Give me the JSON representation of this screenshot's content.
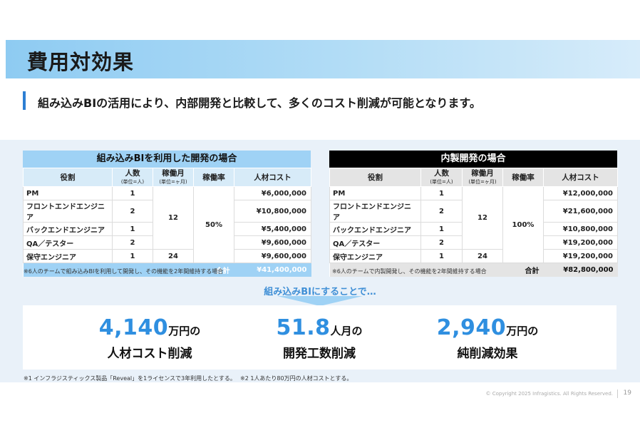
{
  "title": "費用対効果",
  "subtitle": "組み込みBIの活用により、内部開発と比較して、多くのコスト削減が可能となります。",
  "headers": {
    "role": "役割",
    "people": "人数",
    "people_unit": "(単位=人)",
    "months": "稼働月",
    "months_unit": "(単位=ヶ月)",
    "rate": "稼働率",
    "cost": "人材コスト",
    "total": "合計"
  },
  "left_table": {
    "caption": "組み込みBIを利用した開発の場合",
    "rows": [
      {
        "role": "PM",
        "people": "1",
        "cost": "¥6,000,000"
      },
      {
        "role": "フロントエンドエンジニア",
        "people": "2",
        "cost": "¥10,800,000"
      },
      {
        "role": "バックエンドエンジニア",
        "people": "1",
        "cost": "¥5,400,000"
      },
      {
        "role": "QA／テスター",
        "people": "2",
        "cost": "¥9,600,000"
      },
      {
        "role": "保守エンジニア",
        "people": "1",
        "months": "24",
        "cost": "¥9,600,000"
      }
    ],
    "merged_months": "12",
    "merged_rate": "50%",
    "total": "¥41,400,000",
    "note": "※6人のチームで組み込みBIを利用して開発し、その機能を2年間維持する場合"
  },
  "right_table": {
    "caption": "内製開発の場合",
    "rows": [
      {
        "role": "PM",
        "people": "1",
        "cost": "¥12,000,000"
      },
      {
        "role": "フロントエンドエンジニア",
        "people": "2",
        "cost": "¥21,600,000"
      },
      {
        "role": "バックエンドエンジニア",
        "people": "1",
        "cost": "¥10,800,000"
      },
      {
        "role": "QA／テスター",
        "people": "2",
        "cost": "¥19,200,000"
      },
      {
        "role": "保守エンジニア",
        "people": "1",
        "months": "24",
        "cost": "¥19,200,000"
      }
    ],
    "merged_months": "12",
    "merged_rate": "100%",
    "total": "¥82,800,000",
    "note": "※6人のチームで内製開発し、その機能を2年間維持する場合"
  },
  "arrow_label": "組み込みBIにすることで…",
  "results": [
    {
      "number": "4,140",
      "unit": "万円の",
      "desc": "人材コスト削減"
    },
    {
      "number": "51.8",
      "unit": "人月の",
      "desc": "開発工数削減"
    },
    {
      "number": "2,940",
      "unit": "万円の",
      "desc": "純削減効果"
    }
  ],
  "footnotes": [
    "※1 インフラジスティックス製品「Reveal」を1ライセンスで3年利用したとする。",
    "※2 1人あたり80万円の人材コストとする。"
  ],
  "copyright": "© Copyright 2025 Infragistics. All Rights Reserved.",
  "page_number": "19",
  "colors": {
    "accent": "#2f8fe0",
    "left_header": "#9fd2f5",
    "right_header": "#000000",
    "panel": "#e9f1f9"
  }
}
